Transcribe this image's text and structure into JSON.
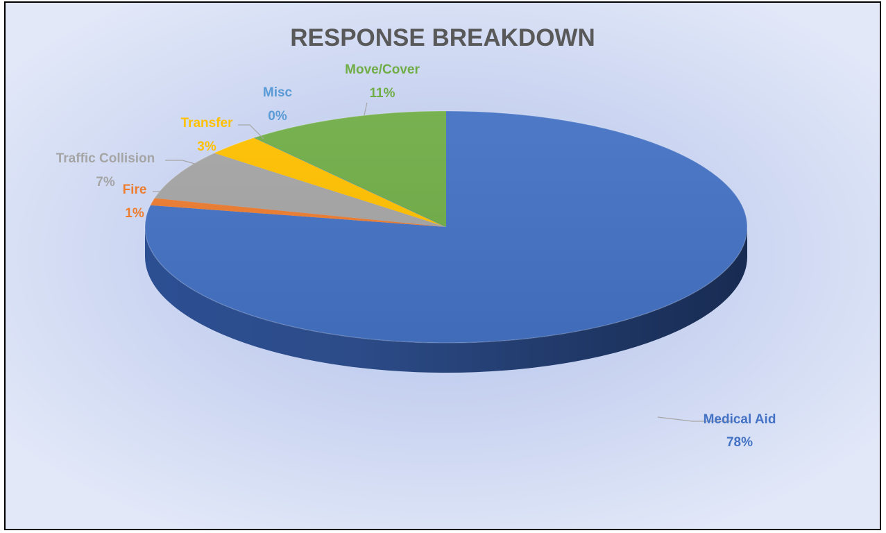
{
  "chart_data": {
    "type": "pie",
    "style": "3d",
    "title": "RESPONSE BREAKDOWN",
    "start_angle_deg": 0,
    "direction": "clockwise",
    "slices": [
      {
        "name": "Medical Aid",
        "value": 78,
        "label": "78%",
        "color": "#4472c4",
        "label_color": "#4472c4"
      },
      {
        "name": "Fire",
        "value": 1,
        "label": "1%",
        "color": "#ed7d31",
        "label_color": "#ed7d31"
      },
      {
        "name": "Traffic Collision",
        "value": 7,
        "label": "7%",
        "color": "#a5a5a5",
        "label_color": "#a5a5a5"
      },
      {
        "name": "Transfer",
        "value": 3,
        "label": "3%",
        "color": "#ffc000",
        "label_color": "#ffc000"
      },
      {
        "name": "Misc",
        "value": 0,
        "label": "0%",
        "color": "#5b9bd5",
        "label_color": "#5b9bd5"
      },
      {
        "name": "Move/Cover",
        "value": 11,
        "label": "11%",
        "color": "#70ad47",
        "label_color": "#70ad47"
      }
    ],
    "legend": "none",
    "data_labels": "category-and-percent"
  }
}
